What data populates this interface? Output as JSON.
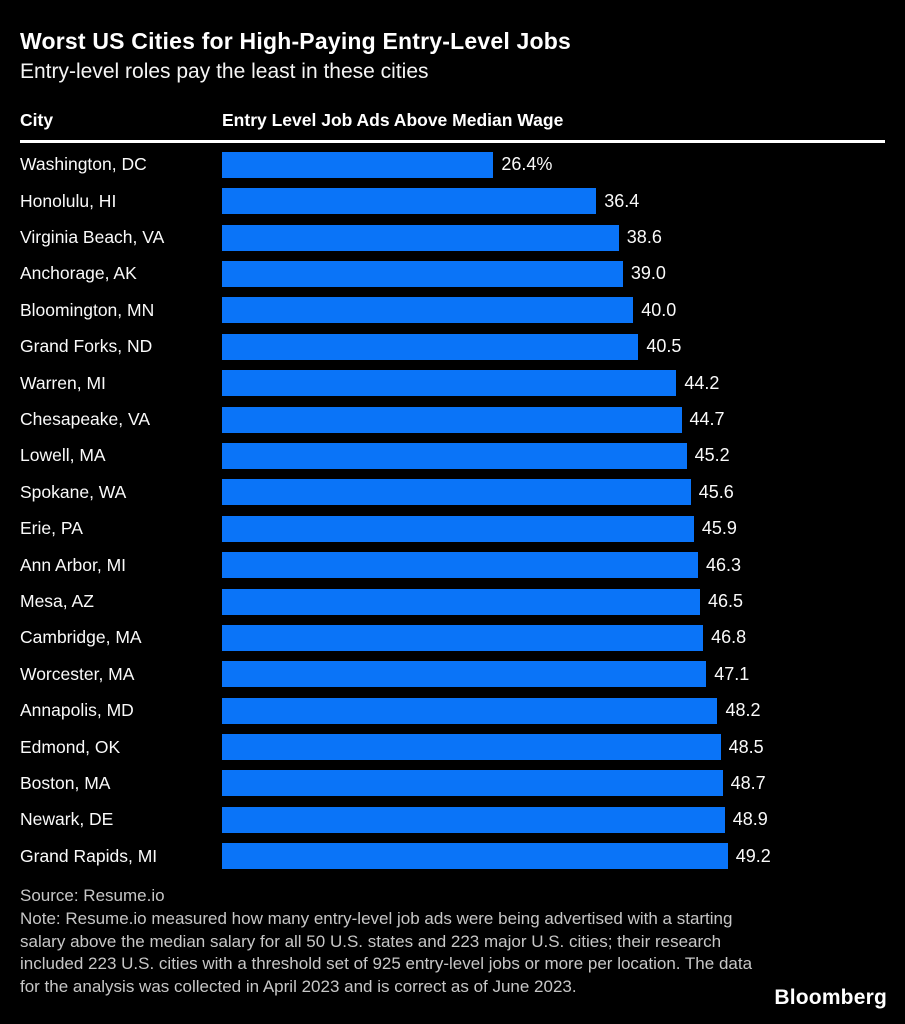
{
  "header": {
    "title": "Worst US Cities for High-Paying Entry-Level Jobs",
    "subtitle": "Entry-level roles pay the least in these cities"
  },
  "columns": {
    "city": "City",
    "value": "Entry Level Job Ads Above Median Wage"
  },
  "chart_data": {
    "type": "bar",
    "orientation": "horizontal",
    "title": "Worst US Cities for High-Paying Entry-Level Jobs",
    "subtitle": "Entry-level roles pay the least in these cities",
    "xlabel": "Entry Level Job Ads Above Median Wage",
    "ylabel": "City",
    "unit": "%",
    "xlim": [
      0,
      52
    ],
    "grid": false,
    "legend": false,
    "bar_color": "#0a74f8",
    "categories": [
      "Washington, DC",
      "Honolulu, HI",
      "Virginia Beach, VA",
      "Anchorage, AK",
      "Bloomington, MN",
      "Grand Forks, ND",
      "Warren, MI",
      "Chesapeake, VA",
      "Lowell, MA",
      "Spokane, WA",
      "Erie, PA",
      "Ann Arbor, MI",
      "Mesa, AZ",
      "Cambridge, MA",
      "Worcester, MA",
      "Annapolis, MD",
      "Edmond, OK",
      "Boston, MA",
      "Newark, DE",
      "Grand Rapids, MI"
    ],
    "values": [
      26.4,
      36.4,
      38.6,
      39.0,
      40.0,
      40.5,
      44.2,
      44.7,
      45.2,
      45.6,
      45.9,
      46.3,
      46.5,
      46.8,
      47.1,
      48.2,
      48.5,
      48.7,
      48.9,
      49.2
    ],
    "value_labels": [
      "26.4%",
      "36.4",
      "38.6",
      "39.0",
      "40.0",
      "40.5",
      "44.2",
      "44.7",
      "45.2",
      "45.6",
      "45.9",
      "46.3",
      "46.5",
      "46.8",
      "47.1",
      "48.2",
      "48.5",
      "48.7",
      "48.9",
      "49.2"
    ]
  },
  "footer": {
    "source": "Source: Resume.io",
    "note": "Note: Resume.io measured how many entry-level job ads were being advertised with a starting salary above the median salary for all 50 U.S. states and 223 major U.S. cities; their research included 223 U.S. cities with a threshold set of 925 entry-level jobs or more per location. The data for the analysis was collected in April 2023 and is correct as of June 2023.",
    "brand": "Bloomberg"
  },
  "colors": {
    "background": "#000000",
    "bar": "#0a74f8",
    "text": "#ffffff",
    "footer_text": "#c7c7c7"
  }
}
